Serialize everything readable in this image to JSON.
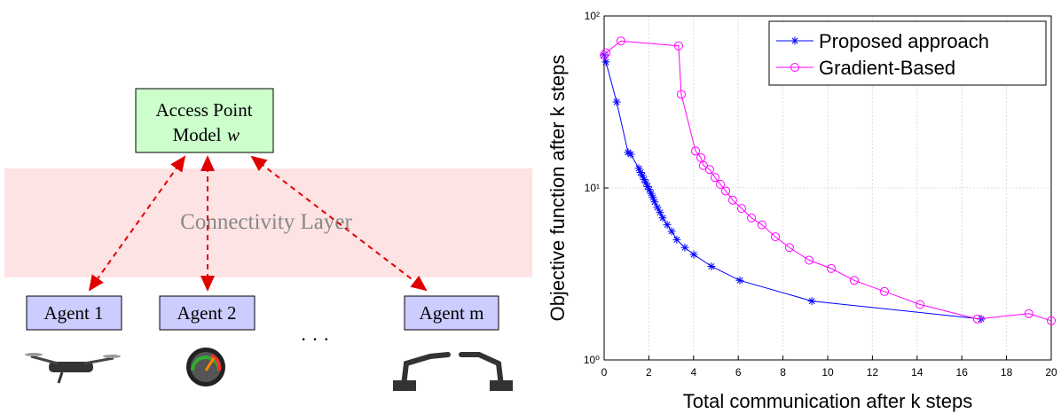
{
  "diagram": {
    "access_point": {
      "line1": "Access Point",
      "line2": "Model",
      "var": "w"
    },
    "layer": "Connectivity Layer",
    "agents": [
      "Agent 1",
      "Agent 2",
      "Agent m"
    ],
    "ellipsis": "· · ·"
  },
  "chart_data": {
    "type": "line",
    "xlabel": "Total communication after k steps",
    "ylabel": "Objective function after k steps",
    "xlim": [
      0,
      20
    ],
    "xticks": [
      0,
      2,
      4,
      6,
      8,
      10,
      12,
      14,
      16,
      18,
      20
    ],
    "ylim": [
      1,
      100
    ],
    "yticks": [
      {
        "value": 1,
        "label": "10⁰"
      },
      {
        "value": 10,
        "label": "10¹"
      },
      {
        "value": 100,
        "label": "10²"
      }
    ],
    "yscale": "log",
    "grid": true,
    "legend": "northeast",
    "series": [
      {
        "name": "Proposed approach",
        "color": "#0000ff",
        "marker": "star",
        "x": [
          0,
          0.08,
          0.56,
          1.07,
          1.19,
          1.55,
          1.63,
          1.71,
          1.79,
          1.87,
          1.94,
          2.02,
          2.1,
          2.18,
          2.26,
          2.38,
          2.5,
          2.62,
          2.82,
          3.02,
          3.25,
          3.61,
          4.01,
          4.8,
          6.07,
          9.29,
          16.87
        ],
        "values": [
          59.3,
          54,
          31.6,
          16.1,
          15.7,
          13.0,
          12.3,
          11.8,
          11.2,
          10.7,
          10.2,
          9.8,
          9.3,
          8.8,
          8.3,
          7.7,
          7.2,
          6.7,
          6.1,
          5.6,
          5.0,
          4.5,
          4.1,
          3.5,
          2.9,
          2.2,
          1.73
        ]
      },
      {
        "name": "Gradient-Based",
        "color": "#ff00ff",
        "marker": "circle",
        "x": [
          0,
          0.08,
          0.75,
          3.33,
          3.45,
          4.09,
          4.33,
          4.44,
          4.72,
          4.96,
          5.2,
          5.44,
          5.75,
          6.15,
          6.59,
          7.06,
          7.66,
          8.29,
          9.17,
          10.16,
          11.19,
          12.54,
          14.13,
          16.7,
          19.0,
          20
        ],
        "values": [
          59,
          61,
          71.5,
          67,
          35,
          16.4,
          15,
          13.5,
          12.8,
          11.5,
          10.5,
          9.6,
          8.5,
          7.6,
          6.7,
          6.1,
          5.2,
          4.5,
          3.8,
          3.4,
          2.9,
          2.5,
          2.1,
          1.73,
          1.86,
          1.69
        ]
      }
    ]
  }
}
